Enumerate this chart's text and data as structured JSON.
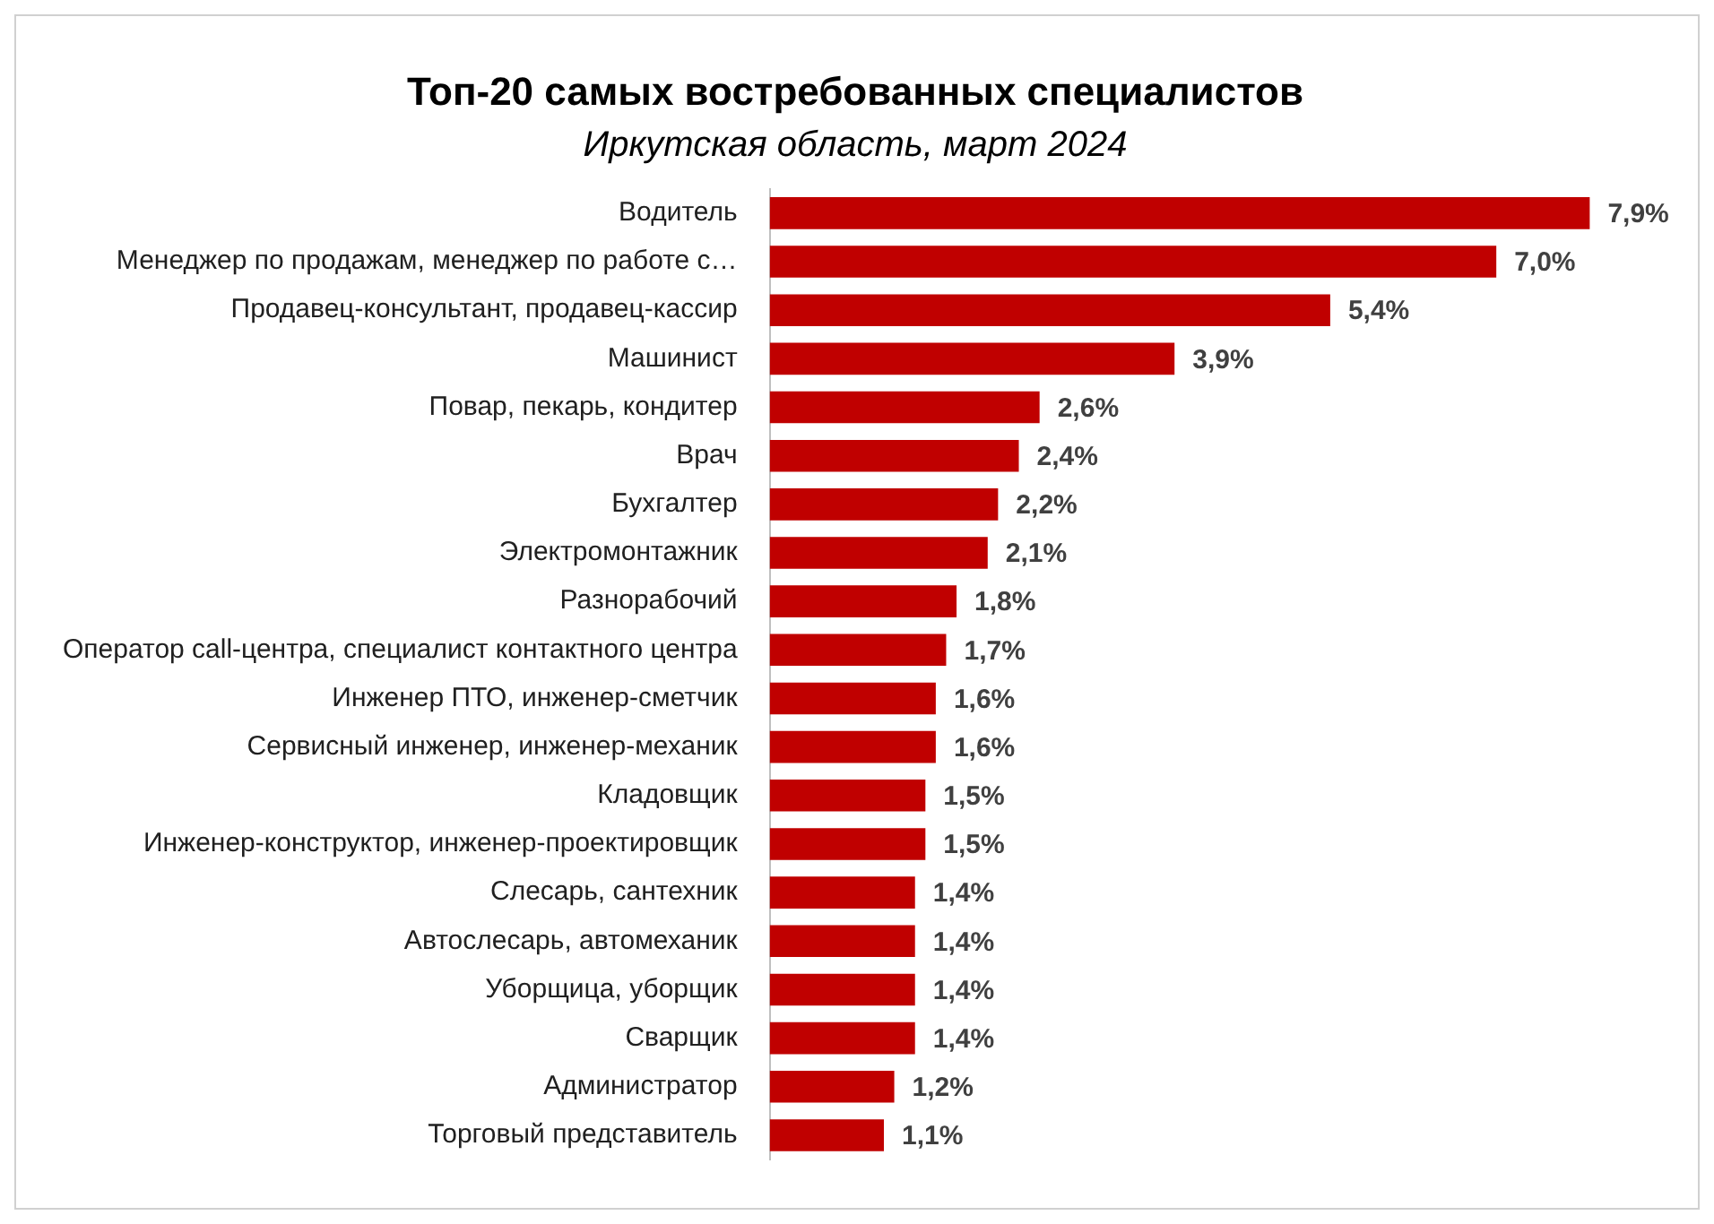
{
  "chart_data": {
    "type": "bar",
    "orientation": "horizontal",
    "title": "Топ-20 самых востребованных специалистов",
    "subtitle": "Иркутская область, март 2024",
    "categories": [
      "Водитель",
      "Менеджер по продажам, менеджер по работе с…",
      "Продавец-консультант, продавец-кассир",
      "Машинист",
      "Повар, пекарь, кондитер",
      "Врач",
      "Бухгалтер",
      "Электромонтажник",
      "Разнорабочий",
      "Оператор call-центра, специалист контактного центра",
      "Инженер ПТО, инженер-сметчик",
      "Сервисный инженер, инженер-механик",
      "Кладовщик",
      "Инженер-конструктор, инженер-проектировщик",
      "Слесарь, сантехник",
      "Автослесарь, автомеханик",
      "Уборщица, уборщик",
      "Сварщик",
      "Администратор",
      "Торговый представитель"
    ],
    "values": [
      7.9,
      7.0,
      5.4,
      3.9,
      2.6,
      2.4,
      2.2,
      2.1,
      1.8,
      1.7,
      1.6,
      1.6,
      1.5,
      1.5,
      1.4,
      1.4,
      1.4,
      1.4,
      1.2,
      1.1
    ],
    "value_labels": [
      "7,9%",
      "7,0%",
      "5,4%",
      "3,9%",
      "2,6%",
      "2,4%",
      "2,2%",
      "2,1%",
      "1,8%",
      "1,7%",
      "1,6%",
      "1,6%",
      "1,5%",
      "1,5%",
      "1,4%",
      "1,4%",
      "1,4%",
      "1,4%",
      "1,2%",
      "1,1%"
    ],
    "color": "#c00000"
  }
}
